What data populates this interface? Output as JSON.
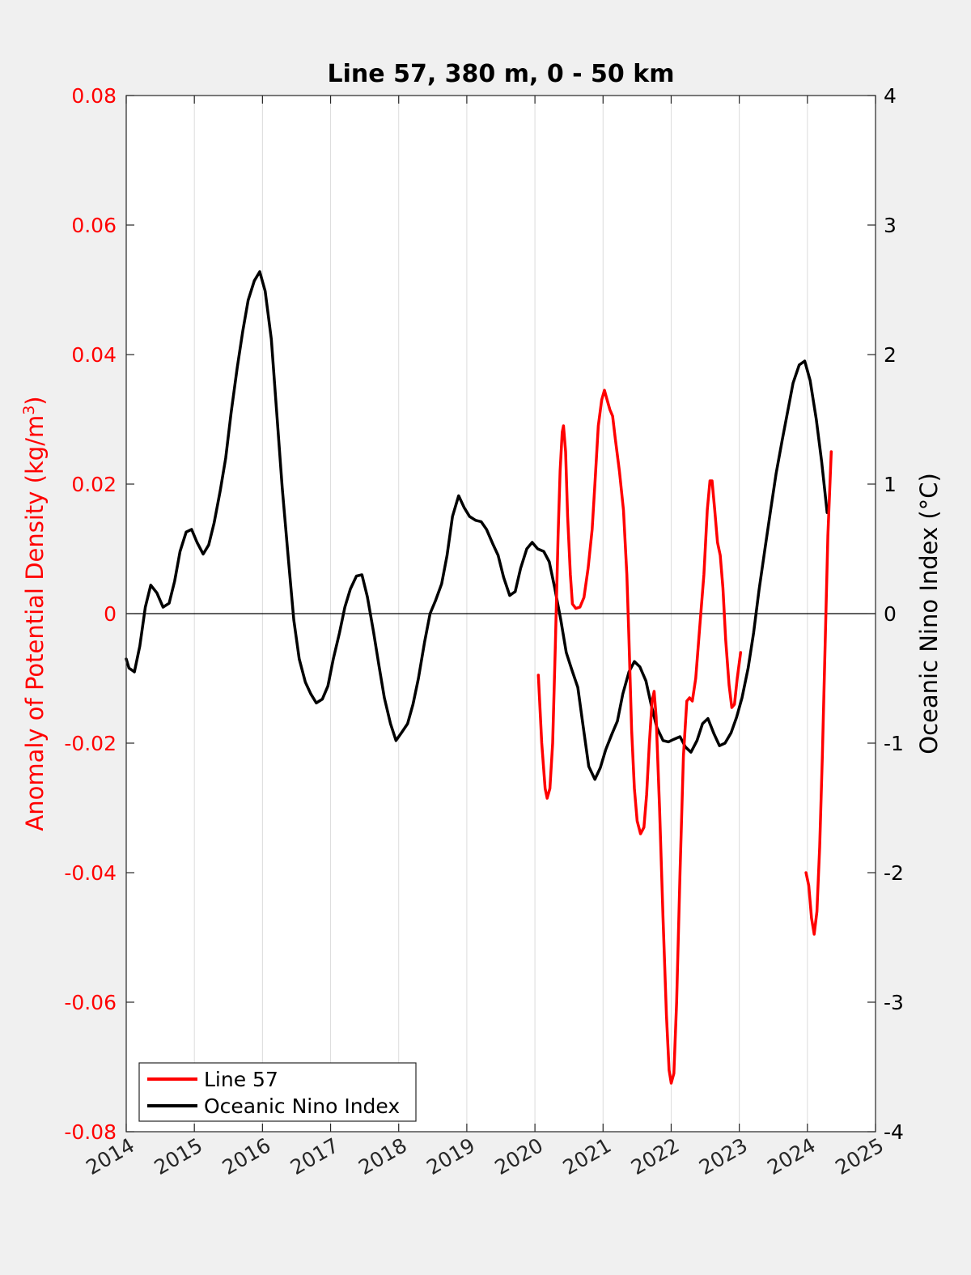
{
  "chart_data": {
    "type": "line",
    "title": "Line 57, 380 m, 0 - 50 km",
    "ylabel_left": "Anomaly of Potential Density (kg/m",
    "ylabel_left_sup": "3",
    "ylabel_left_close": ")",
    "ylabel_right": "Oceanic Nino Index (°C)",
    "xlim": [
      2014,
      2025
    ],
    "ylim_left": [
      -0.08,
      0.08
    ],
    "ylim_right": [
      -4,
      4
    ],
    "x_ticks": [
      "2014",
      "2015",
      "2016",
      "2017",
      "2018",
      "2019",
      "2020",
      "2021",
      "2022",
      "2023",
      "2024",
      "2025"
    ],
    "y_left_ticks": [
      "-0.08",
      "-0.06",
      "-0.04",
      "-0.02",
      "0",
      "0.02",
      "0.04",
      "0.06",
      "0.08"
    ],
    "y_right_ticks": [
      "-4",
      "-3",
      "-2",
      "-1",
      "0",
      "1",
      "2",
      "3",
      "4"
    ],
    "grid": "vertical",
    "legend_position": "bottom-left",
    "colors": {
      "line57": "#ff0000",
      "oni": "#000000"
    },
    "series": [
      {
        "name": "Line 57",
        "axis": "left",
        "color": "#ff0000",
        "segments": [
          [
            [
              2020.05,
              -0.0095
            ],
            [
              2020.1,
              -0.02
            ],
            [
              2020.15,
              -0.027
            ],
            [
              2020.18,
              -0.0285
            ],
            [
              2020.22,
              -0.027
            ],
            [
              2020.26,
              -0.02
            ],
            [
              2020.3,
              -0.005
            ],
            [
              2020.34,
              0.012
            ],
            [
              2020.37,
              0.022
            ],
            [
              2020.4,
              0.028
            ],
            [
              2020.42,
              0.029
            ],
            [
              2020.45,
              0.025
            ],
            [
              2020.48,
              0.015
            ],
            [
              2020.52,
              0.006
            ],
            [
              2020.55,
              0.0015
            ],
            [
              2020.6,
              0.0008
            ],
            [
              2020.66,
              0.001
            ],
            [
              2020.72,
              0.0025
            ],
            [
              2020.78,
              0.007
            ],
            [
              2020.84,
              0.013
            ],
            [
              2020.88,
              0.02
            ],
            [
              2020.93,
              0.029
            ],
            [
              2020.98,
              0.033
            ],
            [
              2021.02,
              0.0345
            ],
            [
              2021.06,
              0.033
            ],
            [
              2021.1,
              0.0315
            ],
            [
              2021.14,
              0.0305
            ],
            [
              2021.18,
              0.027
            ],
            [
              2021.24,
              0.022
            ],
            [
              2021.3,
              0.016
            ],
            [
              2021.35,
              0.006
            ],
            [
              2021.38,
              -0.004
            ],
            [
              2021.42,
              -0.018
            ],
            [
              2021.46,
              -0.027
            ],
            [
              2021.5,
              -0.032
            ],
            [
              2021.55,
              -0.034
            ],
            [
              2021.6,
              -0.033
            ],
            [
              2021.64,
              -0.028
            ],
            [
              2021.68,
              -0.02
            ],
            [
              2021.72,
              -0.0135
            ],
            [
              2021.75,
              -0.012
            ],
            [
              2021.78,
              -0.016
            ],
            [
              2021.83,
              -0.03
            ],
            [
              2021.88,
              -0.047
            ],
            [
              2021.93,
              -0.062
            ],
            [
              2021.97,
              -0.0705
            ],
            [
              2022.0,
              -0.0725
            ],
            [
              2022.04,
              -0.071
            ],
            [
              2022.08,
              -0.06
            ],
            [
              2022.13,
              -0.04
            ],
            [
              2022.18,
              -0.022
            ],
            [
              2022.23,
              -0.0135
            ],
            [
              2022.27,
              -0.013
            ],
            [
              2022.31,
              -0.0135
            ],
            [
              2022.36,
              -0.01
            ],
            [
              2022.42,
              -0.002
            ],
            [
              2022.48,
              0.006
            ],
            [
              2022.53,
              0.016
            ],
            [
              2022.57,
              0.0205
            ],
            [
              2022.6,
              0.0205
            ],
            [
              2022.64,
              0.016
            ],
            [
              2022.68,
              0.011
            ],
            [
              2022.72,
              0.009
            ],
            [
              2022.76,
              0.004
            ],
            [
              2022.8,
              -0.004
            ],
            [
              2022.85,
              -0.011
            ],
            [
              2022.89,
              -0.0145
            ],
            [
              2022.93,
              -0.014
            ],
            [
              2022.97,
              -0.01
            ],
            [
              2023.02,
              -0.006
            ]
          ],
          [
            [
              2023.98,
              -0.04
            ],
            [
              2024.02,
              -0.042
            ],
            [
              2024.06,
              -0.047
            ],
            [
              2024.1,
              -0.0495
            ],
            [
              2024.14,
              -0.046
            ],
            [
              2024.18,
              -0.036
            ],
            [
              2024.22,
              -0.022
            ],
            [
              2024.26,
              -0.005
            ],
            [
              2024.3,
              0.012
            ],
            [
              2024.35,
              0.025
            ]
          ]
        ]
      },
      {
        "name": "Oceanic Nino Index",
        "axis": "right",
        "color": "#000000",
        "points": [
          [
            2014.0,
            -0.35
          ],
          [
            2014.04,
            -0.42
          ],
          [
            2014.12,
            -0.45
          ],
          [
            2014.2,
            -0.25
          ],
          [
            2014.28,
            0.05
          ],
          [
            2014.36,
            0.22
          ],
          [
            2014.45,
            0.16
          ],
          [
            2014.54,
            0.05
          ],
          [
            2014.63,
            0.08
          ],
          [
            2014.71,
            0.25
          ],
          [
            2014.79,
            0.48
          ],
          [
            2014.88,
            0.63
          ],
          [
            2014.96,
            0.65
          ],
          [
            2015.04,
            0.55
          ],
          [
            2015.13,
            0.46
          ],
          [
            2015.21,
            0.53
          ],
          [
            2015.29,
            0.7
          ],
          [
            2015.38,
            0.95
          ],
          [
            2015.46,
            1.2
          ],
          [
            2015.54,
            1.55
          ],
          [
            2015.63,
            1.9
          ],
          [
            2015.71,
            2.18
          ],
          [
            2015.79,
            2.42
          ],
          [
            2015.88,
            2.57
          ],
          [
            2015.96,
            2.64
          ],
          [
            2016.04,
            2.49
          ],
          [
            2016.13,
            2.12
          ],
          [
            2016.21,
            1.55
          ],
          [
            2016.29,
            0.97
          ],
          [
            2016.38,
            0.42
          ],
          [
            2016.46,
            -0.05
          ],
          [
            2016.54,
            -0.35
          ],
          [
            2016.63,
            -0.53
          ],
          [
            2016.71,
            -0.62
          ],
          [
            2016.79,
            -0.69
          ],
          [
            2016.88,
            -0.66
          ],
          [
            2016.96,
            -0.56
          ],
          [
            2017.04,
            -0.35
          ],
          [
            2017.13,
            -0.15
          ],
          [
            2017.21,
            0.05
          ],
          [
            2017.29,
            0.19
          ],
          [
            2017.38,
            0.29
          ],
          [
            2017.46,
            0.3
          ],
          [
            2017.54,
            0.13
          ],
          [
            2017.63,
            -0.14
          ],
          [
            2017.71,
            -0.4
          ],
          [
            2017.79,
            -0.65
          ],
          [
            2017.88,
            -0.85
          ],
          [
            2017.96,
            -0.98
          ],
          [
            2018.04,
            -0.92
          ],
          [
            2018.13,
            -0.85
          ],
          [
            2018.21,
            -0.7
          ],
          [
            2018.29,
            -0.5
          ],
          [
            2018.38,
            -0.22
          ],
          [
            2018.46,
            0.0
          ],
          [
            2018.54,
            0.1
          ],
          [
            2018.63,
            0.23
          ],
          [
            2018.71,
            0.45
          ],
          [
            2018.79,
            0.75
          ],
          [
            2018.88,
            0.91
          ],
          [
            2018.96,
            0.82
          ],
          [
            2019.04,
            0.75
          ],
          [
            2019.13,
            0.72
          ],
          [
            2019.21,
            0.71
          ],
          [
            2019.29,
            0.65
          ],
          [
            2019.38,
            0.54
          ],
          [
            2019.46,
            0.45
          ],
          [
            2019.54,
            0.28
          ],
          [
            2019.63,
            0.14
          ],
          [
            2019.71,
            0.17
          ],
          [
            2019.79,
            0.35
          ],
          [
            2019.88,
            0.5
          ],
          [
            2019.96,
            0.55
          ],
          [
            2020.04,
            0.5
          ],
          [
            2020.13,
            0.48
          ],
          [
            2020.21,
            0.4
          ],
          [
            2020.29,
            0.2
          ],
          [
            2020.38,
            -0.05
          ],
          [
            2020.46,
            -0.3
          ],
          [
            2020.54,
            -0.43
          ],
          [
            2020.63,
            -0.57
          ],
          [
            2020.71,
            -0.88
          ],
          [
            2020.79,
            -1.18
          ],
          [
            2020.88,
            -1.28
          ],
          [
            2020.96,
            -1.19
          ],
          [
            2021.04,
            -1.05
          ],
          [
            2021.13,
            -0.93
          ],
          [
            2021.21,
            -0.83
          ],
          [
            2021.29,
            -0.62
          ],
          [
            2021.38,
            -0.45
          ],
          [
            2021.46,
            -0.37
          ],
          [
            2021.54,
            -0.41
          ],
          [
            2021.63,
            -0.52
          ],
          [
            2021.71,
            -0.71
          ],
          [
            2021.79,
            -0.88
          ],
          [
            2021.88,
            -0.98
          ],
          [
            2021.96,
            -0.99
          ],
          [
            2022.04,
            -0.97
          ],
          [
            2022.13,
            -0.95
          ],
          [
            2022.21,
            -1.03
          ],
          [
            2022.29,
            -1.07
          ],
          [
            2022.38,
            -0.98
          ],
          [
            2022.46,
            -0.85
          ],
          [
            2022.54,
            -0.81
          ],
          [
            2022.63,
            -0.93
          ],
          [
            2022.71,
            -1.02
          ],
          [
            2022.79,
            -1.0
          ],
          [
            2022.88,
            -0.92
          ],
          [
            2022.96,
            -0.8
          ],
          [
            2023.04,
            -0.65
          ],
          [
            2023.13,
            -0.42
          ],
          [
            2023.21,
            -0.15
          ],
          [
            2023.29,
            0.18
          ],
          [
            2023.38,
            0.51
          ],
          [
            2023.46,
            0.8
          ],
          [
            2023.54,
            1.08
          ],
          [
            2023.63,
            1.34
          ],
          [
            2023.71,
            1.56
          ],
          [
            2023.79,
            1.78
          ],
          [
            2023.88,
            1.92
          ],
          [
            2023.96,
            1.95
          ],
          [
            2024.04,
            1.8
          ],
          [
            2024.13,
            1.5
          ],
          [
            2024.21,
            1.17
          ],
          [
            2024.29,
            0.78
          ]
        ]
      }
    ]
  }
}
